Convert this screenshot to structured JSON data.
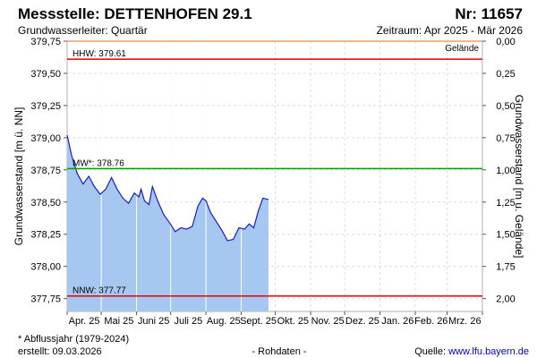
{
  "header": {
    "title": "Messstelle: DETTENHOFEN 29.1",
    "number": "Nr: 11657",
    "aquifer": "Grundwasserleiter: Quartär",
    "period": "Zeitraum: Apr 2025 - Mär 2026"
  },
  "footer": {
    "note": "* Abflussjahr (1979-2024)",
    "created": "erstellt:  09.03.2026",
    "rawdata": "- Rohdaten -",
    "source_prefix": "Quelle: ",
    "source_link": "www.lfu.bayern.de"
  },
  "chart_data": {
    "type": "area",
    "title": "Messstelle: DETTENHOFEN 29.1",
    "ylabel": "Grundwasserstand [m ü. NN]",
    "y2label": "Grundwasserstand [m u. Gelände]",
    "ylim": [
      377.65,
      379.75
    ],
    "y2lim": [
      2.1,
      0.0
    ],
    "yticks": [
      "379,75",
      "379,50",
      "379,25",
      "379,00",
      "378,75",
      "378,50",
      "378,25",
      "378,00",
      "377,75"
    ],
    "y2ticks": [
      "0,00",
      "0,25",
      "0,50",
      "0,75",
      "1,00",
      "1,25",
      "1,50",
      "1,75",
      "2,00"
    ],
    "xtick_labels": [
      "Apr. 25",
      "Mai 25",
      "Juni 25",
      "Juli 25",
      "Aug. 25",
      "Sept. 25",
      "Okt. 25",
      "Nov. 25",
      "Dez. 25",
      "Jan. 26",
      "Feb. 26",
      "Mrz. 26"
    ],
    "grid": true,
    "series_color": "#1a1acc",
    "fill_color": "#a6c8f0",
    "x": [
      "2025-04-01",
      "2025-04-05",
      "2025-04-10",
      "2025-04-15",
      "2025-04-20",
      "2025-04-25",
      "2025-04-30",
      "2025-05-05",
      "2025-05-10",
      "2025-05-15",
      "2025-05-20",
      "2025-05-25",
      "2025-05-30",
      "2025-06-03",
      "2025-06-05",
      "2025-06-08",
      "2025-06-12",
      "2025-06-15",
      "2025-06-20",
      "2025-06-25",
      "2025-06-30",
      "2025-07-05",
      "2025-07-10",
      "2025-07-15",
      "2025-07-20",
      "2025-07-25",
      "2025-07-29",
      "2025-08-01",
      "2025-08-05",
      "2025-08-10",
      "2025-08-15",
      "2025-08-20",
      "2025-08-25",
      "2025-08-30",
      "2025-09-04",
      "2025-09-08",
      "2025-09-12",
      "2025-09-16",
      "2025-09-20",
      "2025-09-25"
    ],
    "values": [
      379.02,
      378.86,
      378.72,
      378.64,
      378.7,
      378.62,
      378.56,
      378.6,
      378.69,
      378.6,
      378.53,
      378.49,
      378.57,
      378.54,
      378.6,
      378.51,
      378.48,
      378.62,
      378.5,
      378.4,
      378.34,
      378.27,
      378.3,
      378.29,
      378.31,
      378.47,
      378.53,
      378.51,
      378.42,
      378.35,
      378.28,
      378.2,
      378.21,
      378.3,
      378.29,
      378.33,
      378.3,
      378.43,
      378.53,
      378.52
    ],
    "reference_lines": [
      {
        "label": "Gelände",
        "value": 379.75,
        "color": "#e8a070"
      },
      {
        "label": "HHW: 379.61",
        "value": 379.61,
        "color": "#e00000"
      },
      {
        "label": "MW*: 378.76",
        "value": 378.76,
        "color": "#00a000"
      },
      {
        "label": "NNW: 377.77",
        "value": 377.77,
        "color": "#e00000"
      }
    ]
  }
}
